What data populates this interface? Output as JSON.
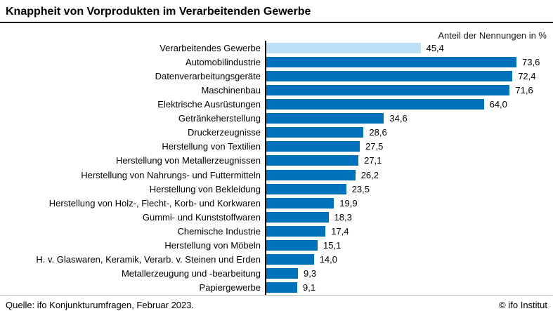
{
  "header": {
    "title": "Knappheit von Vorprodukten im Verarbeitenden Gewerbe",
    "axis_note": "Anteil der Nennungen in %"
  },
  "footer": {
    "source": "Quelle: ifo Konjunkturumfragen, Februar 2023.",
    "copyright": "© ifo Institut"
  },
  "chart_data": {
    "type": "bar",
    "orientation": "horizontal",
    "title": "Knappheit von Vorprodukten im Verarbeitenden Gewerbe",
    "axis_note": "Anteil der Nennungen in %",
    "categories": [
      "Verarbeitendes Gewerbe",
      "Automobilindustrie",
      "Datenverarbeitungsgeräte",
      "Maschinenbau",
      "Elektrische Ausrüstungen",
      "Getränkeherstellung",
      "Druckerzeugnisse",
      "Herstellung von Textilien",
      "Herstellung von Metallerzeugnissen",
      "Herstellung von Nahrungs- und Futtermitteln",
      "Herstellung von Bekleidung",
      "Herstellung von Holz-, Flecht-, Korb- und Korkwaren",
      "Gummi- und Kunststoffwaren",
      "Chemische Industrie",
      "Herstellung von Möbeln",
      "H. v. Glaswaren, Keramik, Verarb. v. Steinen und Erden",
      "Metallerzeugung und -bearbeitung",
      "Papiergewerbe"
    ],
    "values": [
      45.4,
      73.6,
      72.4,
      71.6,
      64.0,
      34.6,
      28.6,
      27.5,
      27.1,
      26.2,
      23.5,
      19.9,
      18.3,
      17.4,
      15.1,
      14.0,
      9.3,
      9.1
    ],
    "xlim": [
      0,
      80
    ],
    "grid": false,
    "legend": false,
    "highlight_index": 0,
    "bar_color": "#0072BC",
    "highlight_color": "#BEE0F6",
    "decimal_separator": ","
  }
}
